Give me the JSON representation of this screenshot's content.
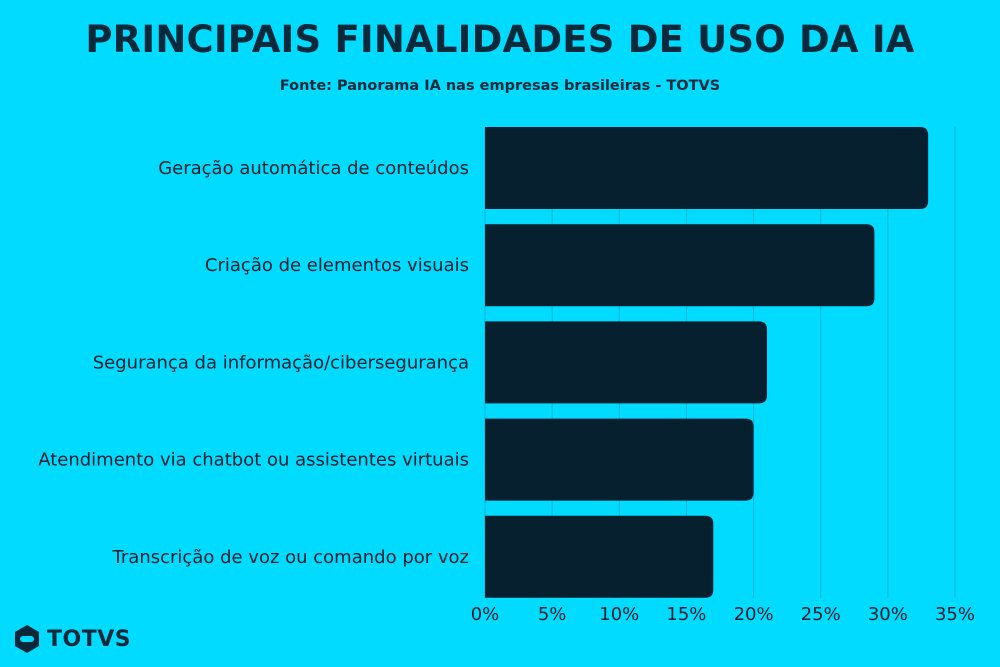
{
  "title": "PRINCIPAIS FINALIDADES DE USO DA IA",
  "subtitle": "Fonte: Panorama IA nas empresas brasileiras - TOTVS",
  "logo_text": "TOTVS",
  "colors": {
    "background": "#00dbff",
    "bar": "#06202f",
    "text": "#0a2a3b",
    "grid": "#00b6d6"
  },
  "chart_data": {
    "type": "bar",
    "orientation": "horizontal",
    "categories": [
      "Geração automática de conteúdos",
      "Criação de elementos visuais",
      "Segurança da informação/cibersegurança",
      "Atendimento via chatbot ou assistentes virtuais",
      "Transcrição de voz ou comando por voz"
    ],
    "values": [
      33,
      29,
      21,
      20,
      17
    ],
    "unit": "%",
    "xlim": [
      0,
      35
    ],
    "xticks": [
      "0%",
      "5%",
      "10%",
      "15%",
      "20%",
      "25%",
      "30%",
      "35%"
    ],
    "grid": true
  }
}
